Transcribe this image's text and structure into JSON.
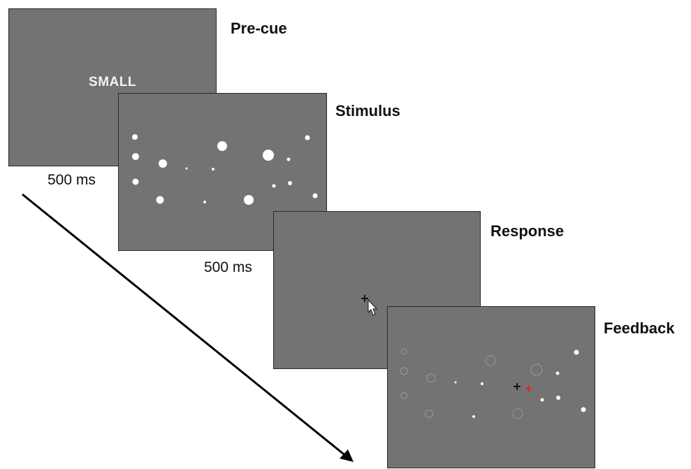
{
  "panels": {
    "precue": {
      "title": "Pre-cue",
      "cue_word": "SMALL",
      "duration": "500 ms"
    },
    "stimulus": {
      "title": "Stimulus",
      "duration": "500 ms"
    },
    "response": {
      "title": "Response"
    },
    "feedback": {
      "title": "Feedback"
    }
  },
  "colors": {
    "screen": "#737373",
    "dot": "#ffffff",
    "response_marker": "#111111",
    "target_marker": "#e0201b"
  },
  "icons": {
    "response_cursor": "mouse-pointer-icon",
    "crosshair": "crosshair-icon",
    "time_arrow": "arrow-icon"
  }
}
